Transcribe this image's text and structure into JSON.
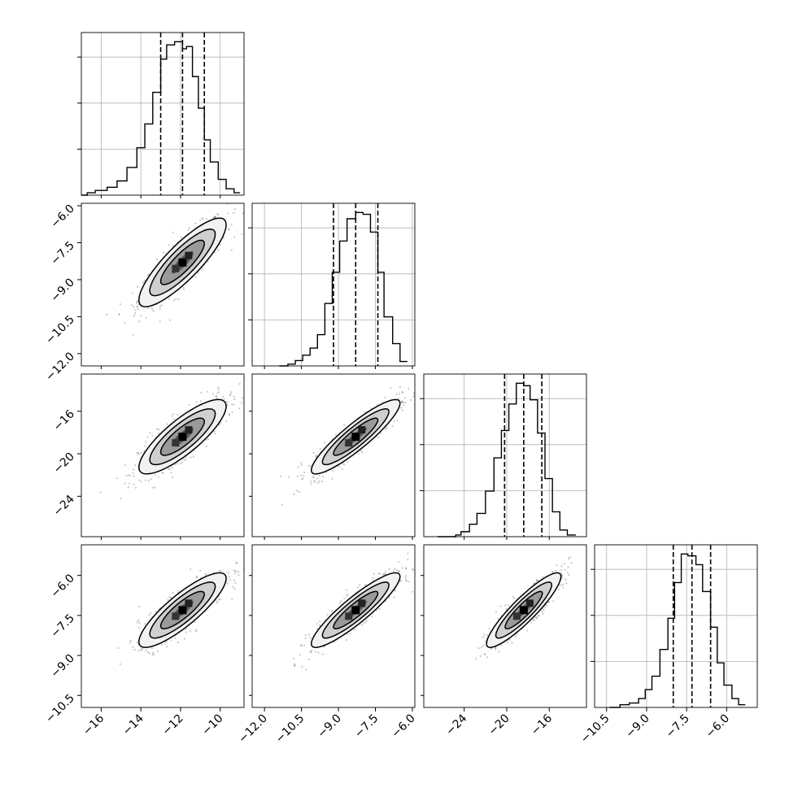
{
  "chart_data": {
    "type": "corner",
    "parameters": [
      {
        "range": [
          -17.0,
          -8.8
        ],
        "ticks": [
          -16,
          -14,
          -12,
          -10
        ],
        "tick_labels": [
          "−16",
          "−14",
          "−12",
          "−10"
        ],
        "quantiles": [
          -13.0,
          -11.9,
          -10.8
        ],
        "hist_bin_width": 0.32,
        "hist_bins": [
          -17.0,
          -16.7,
          -16.3,
          -15.7,
          -15.2,
          -14.7,
          -14.2,
          -13.8,
          -13.4,
          -13.0,
          -12.7,
          -12.3,
          -11.9,
          -11.7,
          -11.4,
          -11.1,
          -10.8,
          -10.5,
          -10.1,
          -9.7,
          -9.3,
          -9.0
        ],
        "hist_counts": [
          0,
          3,
          6,
          10,
          18,
          35,
          60,
          90,
          130,
          172,
          190,
          194,
          185,
          188,
          150,
          110,
          70,
          42,
          20,
          8,
          3
        ]
      },
      {
        "range": [
          -12.5,
          -5.9
        ],
        "ticks": [
          -12.0,
          -10.5,
          -9.0,
          -7.5,
          -6.0
        ],
        "tick_labels": [
          "−12.0",
          "−10.5",
          "−9.0",
          "−7.5",
          "−6.0"
        ],
        "quantiles": [
          -9.2,
          -8.3,
          -7.4
        ],
        "hist_bins": [
          -11.4,
          -11.05,
          -10.75,
          -10.45,
          -10.15,
          -9.85,
          -9.55,
          -9.25,
          -8.95,
          -8.65,
          -8.3,
          -8.0,
          -7.7,
          -7.4,
          -7.15,
          -6.8,
          -6.5,
          -6.2
        ],
        "hist_counts": [
          0,
          2,
          6,
          12,
          20,
          35,
          70,
          105,
          140,
          165,
          172,
          170,
          150,
          105,
          55,
          25,
          5
        ]
      },
      {
        "range": [
          -27.8,
          -12.5
        ],
        "ticks": [
          -24,
          -20,
          -16
        ],
        "tick_labels": [
          "−24",
          "−20",
          "−16"
        ],
        "quantiles": [
          -20.2,
          -18.4,
          -16.7
        ],
        "hist_bins": [
          -26.5,
          -24.8,
          -24.3,
          -23.5,
          -22.8,
          -22.0,
          -21.2,
          -20.5,
          -19.8,
          -19.1,
          -18.4,
          -17.8,
          -17.1,
          -16.4,
          -15.7,
          -15.0,
          -14.3,
          -13.5
        ],
        "hist_counts": [
          0,
          2,
          6,
          15,
          28,
          55,
          95,
          128,
          160,
          185,
          182,
          165,
          125,
          70,
          30,
          8,
          2
        ]
      },
      {
        "range": [
          -10.95,
          -4.85
        ],
        "ticks": [
          -10.5,
          -9.0,
          -7.5,
          -6.0
        ],
        "tick_labels": [
          "−10.5",
          "−9.0",
          "−7.5",
          "−6.0"
        ],
        "quantiles": [
          -8.0,
          -7.3,
          -6.6
        ],
        "hist_bins": [
          -10.4,
          -10.0,
          -9.65,
          -9.3,
          -9.05,
          -8.8,
          -8.5,
          -8.2,
          -7.95,
          -7.7,
          -7.45,
          -7.15,
          -6.9,
          -6.6,
          -6.35,
          -6.1,
          -5.8,
          -5.55,
          -5.3
        ],
        "hist_counts": [
          0,
          3,
          5,
          10,
          20,
          35,
          65,
          100,
          140,
          172,
          170,
          160,
          130,
          90,
          50,
          25,
          10,
          3
        ]
      }
    ],
    "pairs": [
      {
        "row": 1,
        "col": 0,
        "center": [
          -11.9,
          -8.3
        ],
        "sd": [
          1.1,
          0.9
        ],
        "rho": 0.85
      },
      {
        "row": 2,
        "col": 0,
        "center": [
          -11.9,
          -18.4
        ],
        "sd": [
          1.1,
          1.75
        ],
        "rho": 0.82
      },
      {
        "row": 2,
        "col": 1,
        "center": [
          -8.3,
          -18.4
        ],
        "sd": [
          0.9,
          1.75
        ],
        "rho": 0.9
      },
      {
        "row": 3,
        "col": 0,
        "center": [
          -11.9,
          -7.3
        ],
        "sd": [
          1.1,
          0.7
        ],
        "rho": 0.85
      },
      {
        "row": 3,
        "col": 1,
        "center": [
          -8.3,
          -7.3
        ],
        "sd": [
          0.9,
          0.7
        ],
        "rho": 0.9
      },
      {
        "row": 3,
        "col": 2,
        "center": [
          -18.4,
          -7.3
        ],
        "sd": [
          1.75,
          0.7
        ],
        "rho": 0.9
      }
    ],
    "contour_levels_sigma": [
      0.5,
      1.0,
      1.5,
      2.0
    ],
    "grid": true
  }
}
